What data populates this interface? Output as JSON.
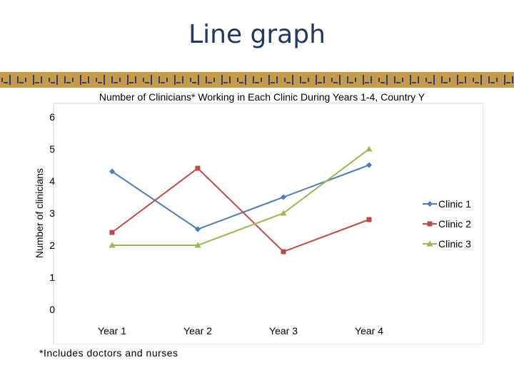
{
  "slide": {
    "title": "Line graph",
    "footnote": "*Includes doctors and nurses"
  },
  "colors": {
    "title_text": "#1f3864",
    "banner_gold": "#c79a45",
    "banner_blue": "#2e3f7f"
  },
  "chart_data": {
    "type": "line",
    "title": "Number of Clinicians* Working in Each Clinic During Years 1-4, Country Y",
    "xlabel": "",
    "ylabel": "Number of clinicians",
    "categories": [
      "Year 1",
      "Year 2",
      "Year 3",
      "Year 4"
    ],
    "ylim": [
      0,
      6
    ],
    "yticks": [
      0,
      1,
      2,
      3,
      4,
      5,
      6
    ],
    "grid": false,
    "legend": "right",
    "series": [
      {
        "name": "Clinic 1",
        "values": [
          4.3,
          2.5,
          3.5,
          4.5
        ],
        "color": "#4a7ebb",
        "marker": "diamond"
      },
      {
        "name": "Clinic 2",
        "values": [
          2.4,
          4.4,
          1.8,
          2.8
        ],
        "color": "#be4b48",
        "marker": "square"
      },
      {
        "name": "Clinic 3",
        "values": [
          2.0,
          2.0,
          3.0,
          5.0
        ],
        "color": "#98b954",
        "marker": "triangle"
      }
    ]
  }
}
